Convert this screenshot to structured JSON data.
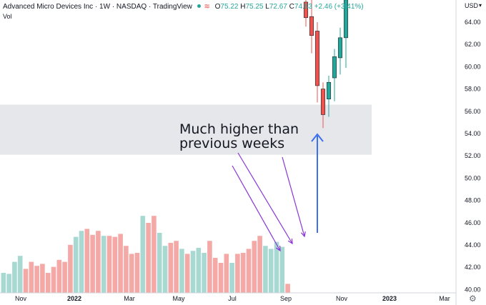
{
  "header": {
    "title": "Advanced Micro Devices Inc · 1W · NASDAQ · TradingView",
    "open_label": "O",
    "open": "75.22",
    "high_label": "H",
    "high": "75.25",
    "low_label": "L",
    "low": "72.67",
    "close_label": "C",
    "close": "74.83",
    "change": "+2.46 (+3.41%)",
    "wave_icon": "≋"
  },
  "volume_label": "Vol",
  "currency": "USD",
  "currency_caret": "▾",
  "annotation": "Much higher than\nprevious weeks",
  "settings_icon": "gear-icon",
  "colors": {
    "up": "#26a69a",
    "down": "#ef5350",
    "vol_up": "#a8d8d2",
    "vol_down": "#f4a9a6",
    "band": "#e6e7ea",
    "arrow_blue": "#3d6ff0",
    "arrow_purple": "#8a35d6"
  },
  "chart_data": {
    "type": "candlestick",
    "title": "Advanced Micro Devices Inc · 1W · NASDAQ",
    "y_ticks": [
      "64.00",
      "62.00",
      "60.00",
      "58.00",
      "56.00",
      "54.00",
      "52.00",
      "50.00",
      "48.00",
      "46.00",
      "44.00",
      "42.00",
      "40.00"
    ],
    "x_ticks": [
      "Nov",
      "2022",
      "Mar",
      "May",
      "Jul",
      "Sep",
      "Nov",
      "2023",
      "Mar"
    ],
    "ylim": [
      40,
      66
    ],
    "highlight_band": [
      52.1,
      56.6
    ],
    "candles": [
      {
        "o": 65.8,
        "h": 66.0,
        "l": 63.6,
        "c": 64.4
      },
      {
        "o": 64.5,
        "h": 66.0,
        "l": 61.2,
        "c": 62.8
      },
      {
        "o": 63.2,
        "h": 64.0,
        "l": 56.8,
        "c": 58.3
      },
      {
        "o": 58.0,
        "h": 58.6,
        "l": 54.5,
        "c": 55.7
      },
      {
        "o": 57.1,
        "h": 59.2,
        "l": 55.5,
        "c": 58.6
      },
      {
        "o": 59.0,
        "h": 61.6,
        "l": 56.9,
        "c": 60.9
      },
      {
        "o": 60.8,
        "h": 63.5,
        "l": 59.3,
        "c": 62.6
      },
      {
        "o": 62.6,
        "h": 66.0,
        "l": 59.9,
        "c": 66.0
      }
    ],
    "volume": [
      {
        "v": 1.0,
        "up": true
      },
      {
        "v": 0.95,
        "up": true
      },
      {
        "v": 1.55,
        "up": true
      },
      {
        "v": 1.85,
        "up": true
      },
      {
        "v": 1.2,
        "up": false
      },
      {
        "v": 1.55,
        "up": false
      },
      {
        "v": 1.35,
        "up": false
      },
      {
        "v": 1.45,
        "up": false
      },
      {
        "v": 1.0,
        "up": false
      },
      {
        "v": 1.3,
        "up": false
      },
      {
        "v": 1.65,
        "up": false
      },
      {
        "v": 1.55,
        "up": false
      },
      {
        "v": 2.4,
        "up": false
      },
      {
        "v": 2.8,
        "up": true
      },
      {
        "v": 3.1,
        "up": true
      },
      {
        "v": 3.2,
        "up": false
      },
      {
        "v": 2.9,
        "up": false
      },
      {
        "v": 3.1,
        "up": false
      },
      {
        "v": 2.85,
        "up": true
      },
      {
        "v": 2.85,
        "up": false
      },
      {
        "v": 2.8,
        "up": false
      },
      {
        "v": 2.95,
        "up": false
      },
      {
        "v": 2.35,
        "up": false
      },
      {
        "v": 1.95,
        "up": false
      },
      {
        "v": 2.0,
        "up": false
      },
      {
        "v": 3.85,
        "up": true
      },
      {
        "v": 3.5,
        "up": false
      },
      {
        "v": 3.85,
        "up": false
      },
      {
        "v": 3.0,
        "up": true
      },
      {
        "v": 2.35,
        "up": true
      },
      {
        "v": 2.5,
        "up": false
      },
      {
        "v": 2.6,
        "up": false
      },
      {
        "v": 2.2,
        "up": true
      },
      {
        "v": 1.95,
        "up": false
      },
      {
        "v": 2.1,
        "up": true
      },
      {
        "v": 2.25,
        "up": true
      },
      {
        "v": 2.0,
        "up": true
      },
      {
        "v": 2.6,
        "up": false
      },
      {
        "v": 1.75,
        "up": false
      },
      {
        "v": 1.5,
        "up": false
      },
      {
        "v": 1.95,
        "up": false
      },
      {
        "v": 1.5,
        "up": true
      },
      {
        "v": 1.95,
        "up": false
      },
      {
        "v": 2.0,
        "up": false
      },
      {
        "v": 2.2,
        "up": false
      },
      {
        "v": 2.6,
        "up": false
      },
      {
        "v": 2.85,
        "up": false
      },
      {
        "v": 2.35,
        "up": true
      },
      {
        "v": 2.2,
        "up": true
      },
      {
        "v": 2.55,
        "up": true
      },
      {
        "v": 2.3,
        "up": true
      },
      {
        "v": 0.45,
        "up": false
      }
    ]
  }
}
